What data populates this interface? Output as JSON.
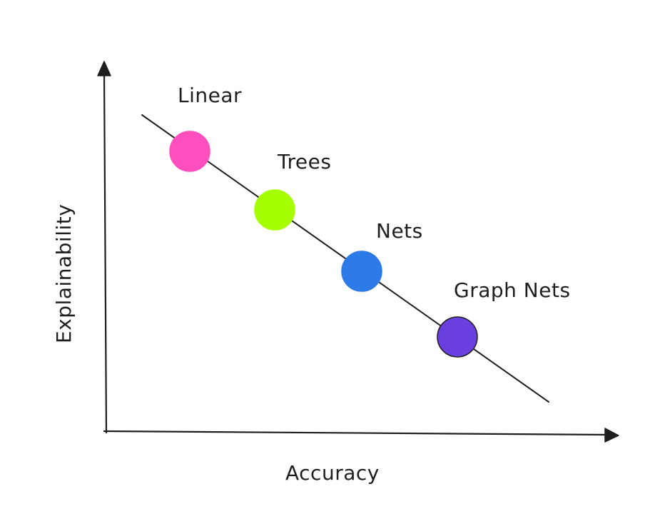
{
  "diagram": {
    "x_axis_label": "Accuracy",
    "y_axis_label": "Explainability",
    "models": [
      {
        "label": "Linear",
        "color": "#ff4fbf",
        "stroke": "#ff4fbf"
      },
      {
        "label": "Trees",
        "color": "#a6ff00",
        "stroke": "#a6ff00"
      },
      {
        "label": "Nets",
        "color": "#2b7ae8",
        "stroke": "#2b7ae8"
      },
      {
        "label": "Graph Nets",
        "color": "#6a3fe0",
        "stroke": "#1e1e1e"
      }
    ]
  }
}
